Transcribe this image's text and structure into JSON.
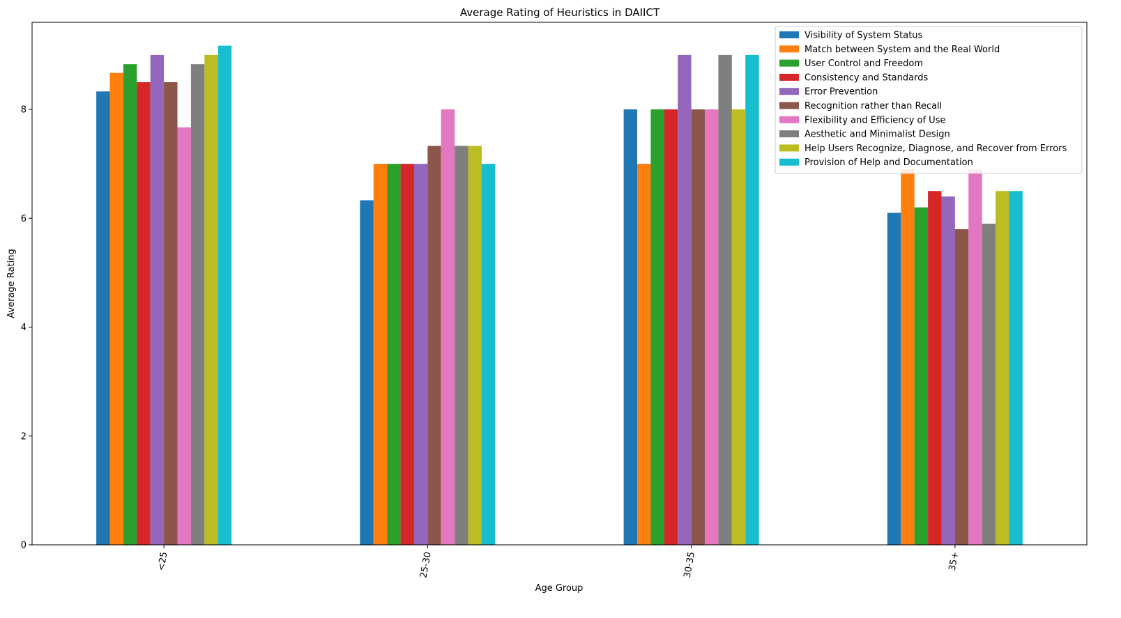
{
  "chart_data": {
    "type": "bar",
    "title": "Average Rating of Heuristics in DAIICT",
    "xlabel": "Age Group",
    "ylabel": "Average Rating",
    "categories": [
      "<25",
      "25-30",
      "30-35",
      "35+"
    ],
    "ylim": [
      0,
      9.6
    ],
    "yticks": [
      0,
      2,
      4,
      6,
      8
    ],
    "legend_position": "top-right",
    "grid": false,
    "series": [
      {
        "name": "Visibility of System Status",
        "color": "#1f77b4",
        "values": [
          8.33,
          6.33,
          8.0,
          6.1
        ]
      },
      {
        "name": "Match between System and the Real World",
        "color": "#ff7f0e",
        "values": [
          8.67,
          7.0,
          7.0,
          6.9
        ]
      },
      {
        "name": "User Control and Freedom",
        "color": "#2ca02c",
        "values": [
          8.83,
          7.0,
          8.0,
          6.2
        ]
      },
      {
        "name": "Consistency and Standards",
        "color": "#d62728",
        "values": [
          8.5,
          7.0,
          8.0,
          6.5
        ]
      },
      {
        "name": "Error Prevention",
        "color": "#9467bd",
        "values": [
          9.0,
          7.0,
          9.0,
          6.4
        ]
      },
      {
        "name": "Recognition rather than Recall",
        "color": "#8c564b",
        "values": [
          8.5,
          7.33,
          8.0,
          5.8
        ]
      },
      {
        "name": "Flexibility and Efficiency of Use",
        "color": "#e377c2",
        "values": [
          7.67,
          8.0,
          8.0,
          6.9
        ]
      },
      {
        "name": "Aesthetic and Minimalist Design",
        "color": "#7f7f7f",
        "values": [
          8.83,
          7.33,
          9.0,
          5.9
        ]
      },
      {
        "name": "Help Users Recognize, Diagnose, and Recover from Errors",
        "color": "#bcbd22",
        "values": [
          9.0,
          7.33,
          8.0,
          6.5
        ]
      },
      {
        "name": "Provision of Help and Documentation",
        "color": "#17becf",
        "values": [
          9.17,
          7.0,
          9.0,
          6.5
        ]
      }
    ]
  }
}
